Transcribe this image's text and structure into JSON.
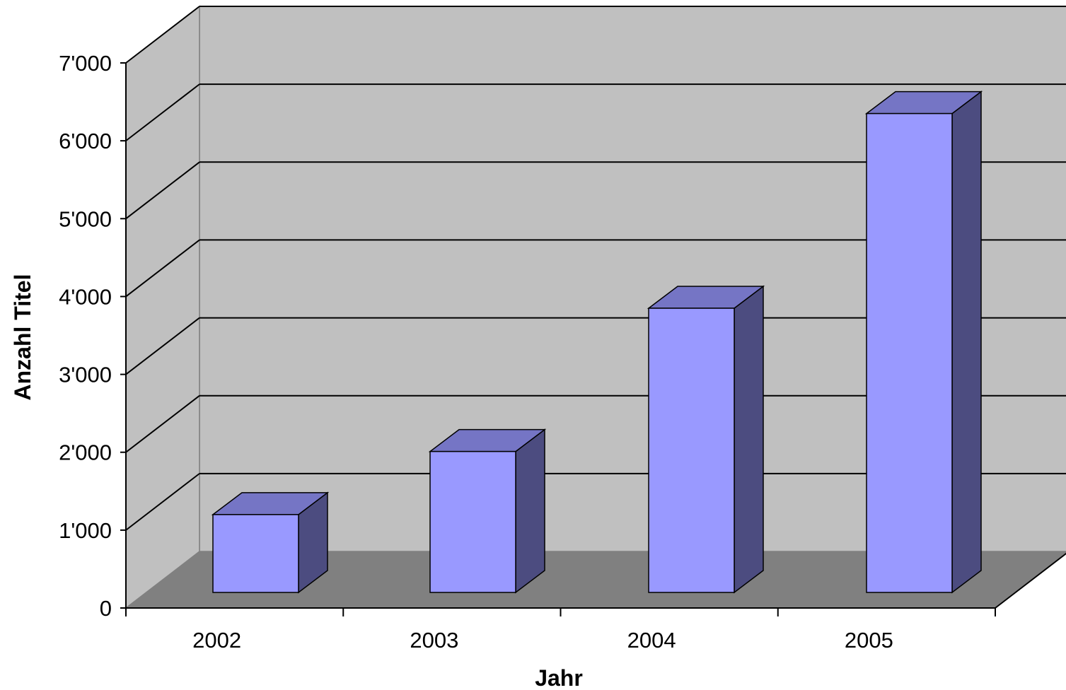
{
  "chart_data": {
    "type": "bar",
    "style": "3d-column",
    "categories": [
      "2002",
      "2003",
      "2004",
      "2005"
    ],
    "values": [
      1000,
      1810,
      3650,
      6150
    ],
    "title": "",
    "xlabel": "Jahr",
    "ylabel": "Anzahl Titel",
    "ylim": [
      0,
      7000
    ],
    "y_ticks": [
      0,
      1000,
      2000,
      3000,
      4000,
      5000,
      6000,
      7000
    ],
    "y_tick_labels": [
      "0",
      "1'000",
      "2'000",
      "3'000",
      "4'000",
      "5'000",
      "6'000",
      "7'000"
    ],
    "grid": true,
    "legend": "none",
    "colors": {
      "bar_front": "#9999ff",
      "bar_top": "#7575c5",
      "bar_side": "#4c4c80",
      "wall": "#c0c0c0",
      "side_wall": "#c0c0c0",
      "floor": "#808080",
      "gridline": "#000000"
    }
  }
}
